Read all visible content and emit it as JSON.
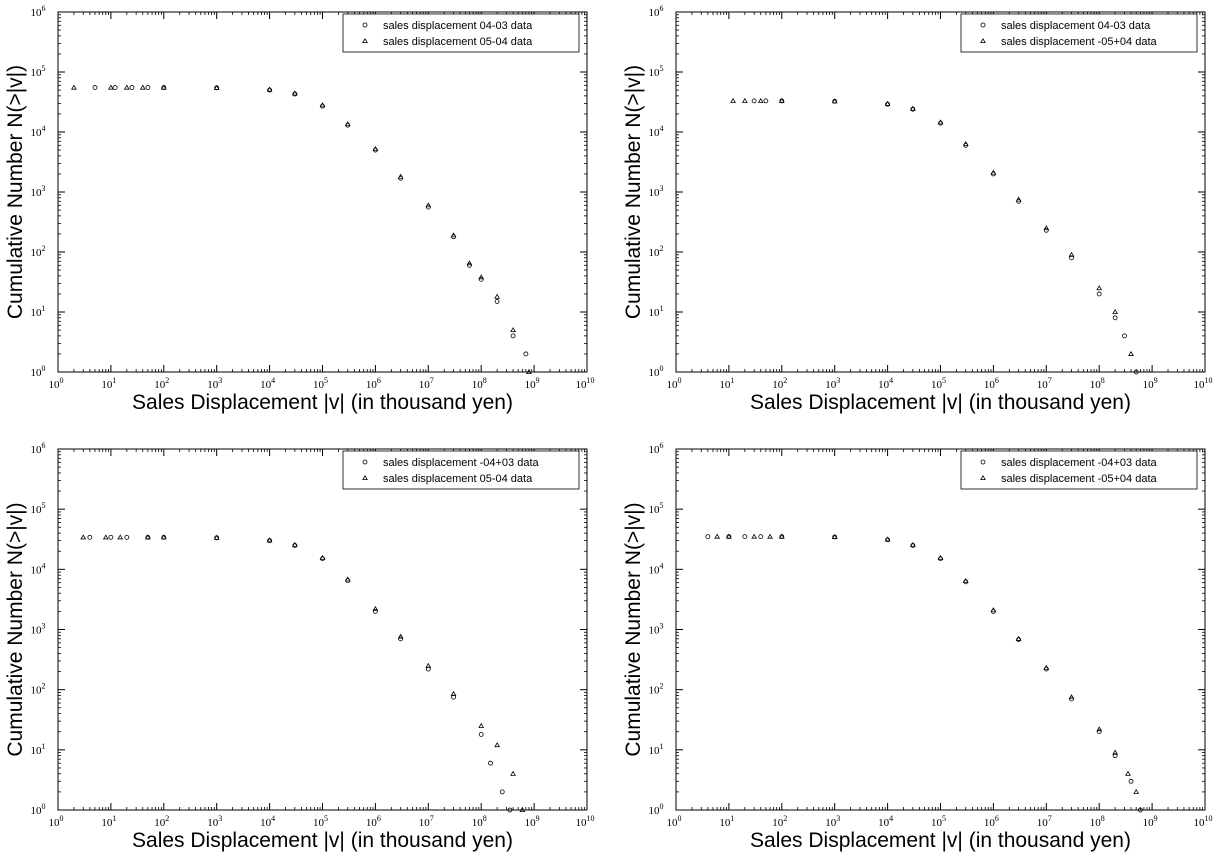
{
  "chart_data": [
    {
      "type": "scatter",
      "xlabel": "Sales Displacement |v| (in thousand yen)",
      "ylabel": "Cumulative Number N(>|v|)",
      "xscale": "log",
      "yscale": "log",
      "xlim": [
        1,
        10000000000
      ],
      "ylim": [
        1,
        1000000
      ],
      "legend": "top-right",
      "grid": false,
      "series": [
        {
          "name": "sales displacement 04-03 data",
          "marker": "circle",
          "x": [
            5,
            12,
            25,
            50,
            100,
            1000,
            10000,
            30000,
            100000,
            300000,
            1000000,
            3000000,
            10000000,
            30000000,
            60000000,
            100000000,
            200000000,
            400000000,
            700000000
          ],
          "y": [
            55000,
            55000,
            55000,
            55000,
            55000,
            54500,
            50000,
            43000,
            27000,
            13000,
            5000,
            1700,
            560,
            180,
            60,
            35,
            15,
            4,
            2
          ]
        },
        {
          "name": "sales displacement 05-04 data",
          "marker": "triangle",
          "x": [
            2,
            10,
            20,
            40,
            100,
            1000,
            10000,
            30000,
            100000,
            300000,
            1000000,
            3000000,
            10000000,
            30000000,
            60000000,
            100000000,
            200000000,
            400000000,
            800000000
          ],
          "y": [
            55000,
            55000,
            55000,
            55000,
            55000,
            54500,
            51000,
            44000,
            28000,
            13500,
            5200,
            1800,
            600,
            190,
            65,
            38,
            18,
            5,
            1
          ]
        }
      ]
    },
    {
      "type": "scatter",
      "xlabel": "Sales Displacement |v| (in thousand yen)",
      "ylabel": "Cumulative Number N(>|v|)",
      "xscale": "log",
      "yscale": "log",
      "xlim": [
        1,
        10000000000
      ],
      "ylim": [
        1,
        1000000
      ],
      "legend": "top-right",
      "grid": false,
      "series": [
        {
          "name": "sales displacement 04-03 data",
          "marker": "circle",
          "x": [
            30,
            50,
            100,
            1000,
            10000,
            30000,
            100000,
            300000,
            1000000,
            3000000,
            10000000,
            30000000,
            100000000,
            200000000,
            300000000,
            500000000
          ],
          "y": [
            33000,
            33000,
            33000,
            32500,
            29000,
            24000,
            14000,
            6000,
            2000,
            700,
            230,
            80,
            20,
            8,
            4,
            1
          ]
        },
        {
          "name": "sales displacement -05+04 data",
          "marker": "triangle",
          "x": [
            12,
            20,
            40,
            100,
            1000,
            10000,
            30000,
            100000,
            300000,
            1000000,
            3000000,
            10000000,
            30000000,
            100000000,
            200000000,
            400000000
          ],
          "y": [
            33000,
            33000,
            33000,
            33000,
            32500,
            29500,
            24500,
            14500,
            6300,
            2100,
            750,
            250,
            90,
            25,
            10,
            2
          ]
        }
      ]
    },
    {
      "type": "scatter",
      "xlabel": "Sales Displacement |v| (in thousand yen)",
      "ylabel": "Cumulative Number N(>|v|)",
      "xscale": "log",
      "yscale": "log",
      "xlim": [
        1,
        10000000000
      ],
      "ylim": [
        1,
        1000000
      ],
      "legend": "top-right",
      "grid": false,
      "series": [
        {
          "name": "sales displacement -04+03 data",
          "marker": "circle",
          "x": [
            4,
            10,
            20,
            50,
            100,
            1000,
            10000,
            30000,
            100000,
            300000,
            1000000,
            3000000,
            10000000,
            30000000,
            100000000,
            150000000,
            250000000,
            350000000
          ],
          "y": [
            34000,
            34000,
            34000,
            34000,
            34000,
            33500,
            30000,
            25000,
            15000,
            6500,
            2000,
            700,
            220,
            75,
            18,
            6,
            2,
            1
          ]
        },
        {
          "name": "sales displacement 05-04 data",
          "marker": "triangle",
          "x": [
            3,
            8,
            15,
            50,
            100,
            1000,
            10000,
            30000,
            100000,
            300000,
            1000000,
            3000000,
            10000000,
            30000000,
            100000000,
            200000000,
            400000000,
            600000000
          ],
          "y": [
            34000,
            34000,
            34000,
            34000,
            34000,
            33500,
            30500,
            25500,
            15500,
            6800,
            2200,
            760,
            250,
            85,
            25,
            12,
            4,
            1
          ]
        }
      ]
    },
    {
      "type": "scatter",
      "xlabel": "Sales Displacement |v| (in thousand yen)",
      "ylabel": "Cumulative Number N(>|v|)",
      "xscale": "log",
      "yscale": "log",
      "xlim": [
        1,
        10000000000
      ],
      "ylim": [
        1,
        1000000
      ],
      "legend": "top-right",
      "grid": false,
      "series": [
        {
          "name": "sales displacement -04+03 data",
          "marker": "circle",
          "x": [
            4,
            10,
            20,
            40,
            100,
            1000,
            10000,
            30000,
            100000,
            300000,
            1000000,
            3000000,
            10000000,
            30000000,
            100000000,
            200000000,
            400000000,
            600000000
          ],
          "y": [
            35000,
            35000,
            35000,
            35000,
            35000,
            34500,
            31000,
            25000,
            15000,
            6200,
            2000,
            680,
            220,
            70,
            20,
            8,
            3,
            1
          ]
        },
        {
          "name": "sales displacement -05+04 data",
          "marker": "triangle",
          "x": [
            6,
            10,
            30,
            60,
            100,
            1000,
            10000,
            30000,
            100000,
            300000,
            1000000,
            3000000,
            10000000,
            30000000,
            100000000,
            200000000,
            350000000,
            500000000
          ],
          "y": [
            35000,
            35000,
            35000,
            35000,
            35000,
            34500,
            31500,
            25500,
            15500,
            6400,
            2100,
            700,
            230,
            75,
            22,
            9,
            4,
            2
          ]
        }
      ]
    }
  ]
}
